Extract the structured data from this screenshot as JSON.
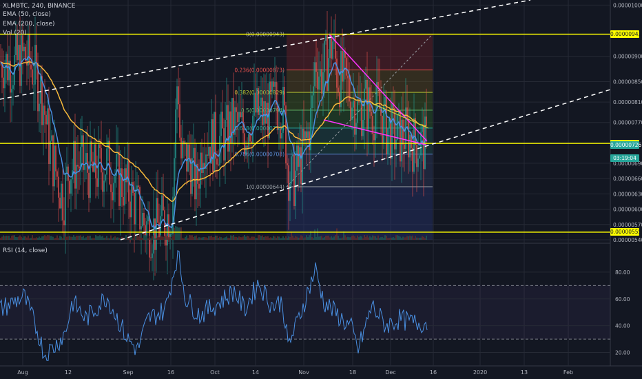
{
  "header": {
    "symbol": "XLMBTC, 240, BINANCE",
    "ema50": "EMA (50, close)",
    "ema200": "EMA (200, close)",
    "vol": "Vol (20)"
  },
  "rsi_title": "RSI (14, close)",
  "colors": {
    "background": "#131722",
    "grid": "#262a35",
    "candle_up": "#26a69a",
    "candle_down": "#ef5350",
    "ema50": "#4a90e2",
    "ema200": "#f6b93b",
    "horizontal_level": "#ffff00",
    "trendline_dashed": "#ffffff",
    "wedge_upper": "#ff33ff",
    "wedge_lower": "#ff33ff",
    "rsi_line": "#4a90e2"
  },
  "price_labels": [
    "0.00001000",
    "0.00000900",
    "0.00000850",
    "0.00000810",
    "0.00000770",
    "0.00000690",
    "0.00000660",
    "0.00000630",
    "0.00000600",
    "0.00000570",
    "0.00000540"
  ],
  "price_tags": [
    {
      "value": "0.00000943",
      "style": "yellow"
    },
    {
      "value": "0.00000729",
      "style": "yellow"
    },
    {
      "value": "0.00000726",
      "style": "green"
    },
    {
      "value": "03:19:04",
      "style": "green"
    },
    {
      "value": "0.00000555",
      "style": "yellow"
    }
  ],
  "rsi_labels": [
    "80.00",
    "60.00",
    "40.00",
    "20.00"
  ],
  "time_labels": [
    "Aug",
    "12",
    "Sep",
    "16",
    "Oct",
    "14",
    "Nov",
    "18",
    "Dec",
    "16",
    "2020",
    "13",
    "Feb"
  ],
  "fib_labels": [
    "0(0.00000943)",
    "0.236(0.00000873)",
    "0.382(0.00000829)",
    "0.5(0.00000794)",
    "0.618(0.00000759)",
    "0.786(0.00000708)",
    "1(0.00000644)"
  ],
  "chart_data": {
    "type": "candlestick",
    "symbol": "XLMBTC",
    "interval": "240",
    "exchange": "BINANCE",
    "price_range": [
      5.4e-06,
      1.01e-05
    ],
    "horizontal_levels": [
      9.43e-06,
      7.29e-06,
      5.55e-06
    ],
    "current_price": 7.26e-06,
    "fibonacci_retracement": {
      "high": 9.43e-06,
      "low": 6.44e-06,
      "levels": [
        {
          "ratio": 0,
          "price": 9.43e-06
        },
        {
          "ratio": 0.236,
          "price": 8.73e-06
        },
        {
          "ratio": 0.382,
          "price": 8.29e-06
        },
        {
          "ratio": 0.5,
          "price": 7.94e-06
        },
        {
          "ratio": 0.618,
          "price": 7.59e-06
        },
        {
          "ratio": 0.786,
          "price": 7.08e-06
        },
        {
          "ratio": 1,
          "price": 6.44e-06
        }
      ]
    },
    "price_close_by_month": [
      {
        "x": "Aug",
        "y": 8.7e-06
      },
      {
        "x": "12",
        "y": 6.9e-06
      },
      {
        "x": "Sep",
        "y": 6.2e-06
      },
      {
        "x": "16",
        "y": 7.2e-06
      },
      {
        "x": "Oct",
        "y": 7.5e-06
      },
      {
        "x": "14",
        "y": 7.6e-06
      },
      {
        "x": "Nov",
        "y": 8.3e-06
      },
      {
        "x": "18",
        "y": 8e-06
      },
      {
        "x": "Dec",
        "y": 7.4e-06
      }
    ],
    "rsi": {
      "period": 14,
      "overbought": 70,
      "oversold": 30,
      "y_range": [
        10,
        100
      ],
      "last_value": 42
    }
  }
}
